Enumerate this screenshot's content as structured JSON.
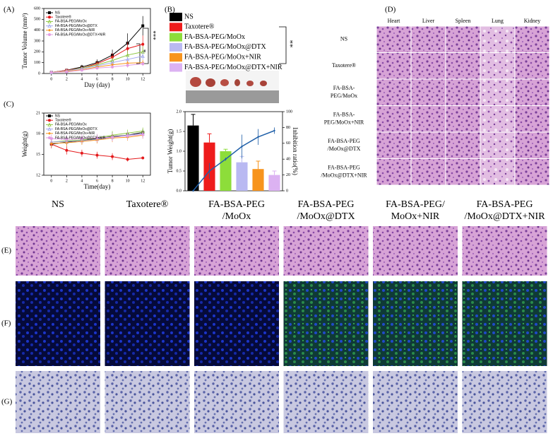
{
  "chart_data": [
    {
      "type": "line",
      "panel_label": "(A)",
      "xlabel": "Day (day)",
      "ylabel": "Tumor Volume (mm³)",
      "x": [
        0,
        2,
        4,
        6,
        8,
        10,
        12
      ],
      "xlim": [
        -1,
        13
      ],
      "xticks": [
        0,
        2,
        4,
        6,
        8,
        10,
        12
      ],
      "ylim": [
        0,
        600
      ],
      "yticks": [
        0,
        100,
        200,
        300,
        400,
        500,
        600
      ],
      "series": [
        {
          "name": "NS",
          "color": "#000000",
          "marker": "square",
          "values": [
            10,
            30,
            60,
            100,
            170,
            280,
            440
          ],
          "errors": [
            5,
            15,
            20,
            30,
            50,
            90,
            90
          ]
        },
        {
          "name": "Taxotere®",
          "color": "#e41a1c",
          "marker": "circle",
          "values": [
            10,
            30,
            50,
            90,
            150,
            230,
            270
          ],
          "errors": [
            5,
            10,
            20,
            25,
            40,
            60,
            80
          ]
        },
        {
          "name": "FA-BSA-PEG/MoOx",
          "color": "#8dc63f",
          "marker": "triangle",
          "values": [
            10,
            25,
            50,
            80,
            120,
            170,
            200
          ],
          "errors": [
            5,
            10,
            15,
            20,
            30,
            40,
            50
          ]
        },
        {
          "name": "FA-BSA-PEG/MoOx@DTX",
          "color": "#a3a8ef",
          "marker": "triangle",
          "values": [
            10,
            25,
            45,
            70,
            100,
            130,
            160
          ],
          "errors": [
            5,
            8,
            12,
            18,
            25,
            30,
            40
          ]
        },
        {
          "name": "FA-BSA-PEG/MoOx+NIR",
          "color": "#f7941d",
          "marker": "diamond",
          "values": [
            10,
            20,
            35,
            60,
            80,
            95,
            100
          ],
          "errors": [
            4,
            8,
            10,
            15,
            20,
            25,
            25
          ]
        },
        {
          "name": "FA-BSA-PEG/MoOx@DTX+NIR",
          "color": "#e29de2",
          "marker": "circle",
          "values": [
            10,
            15,
            30,
            50,
            60,
            75,
            90
          ],
          "errors": [
            4,
            6,
            10,
            12,
            15,
            20,
            20
          ]
        }
      ],
      "annotations": [
        "***",
        "*"
      ]
    },
    {
      "type": "bar",
      "panel_label": "(B)",
      "ylabel": "Tumor Weight(g)",
      "y2label": "Inhibition ratio(%)",
      "categories": [
        "NS",
        "Taxotere®",
        "FA-BSA-PEG/MoOx",
        "FA-BSA-PEG/MoOx@DTX",
        "FA-BSA-PEG/MoOx+NIR",
        "FA-BSA-PEG/MoOx@DTX+NIR"
      ],
      "colors": [
        "#000000",
        "#ee1c1c",
        "#8ddd3a",
        "#b9b9f2",
        "#f7941d",
        "#dcb2f2"
      ],
      "ylim": [
        0,
        2.0
      ],
      "yticks": [
        {
          "value": 0,
          "label": "0.0"
        },
        {
          "value": 0.5,
          "label": "0.5"
        },
        {
          "value": 1.0,
          "label": "1.0"
        },
        {
          "value": 1.5,
          "label": "1.5"
        },
        {
          "value": 2.0,
          "label": "2.0"
        }
      ],
      "y2lim": [
        0,
        100
      ],
      "y2ticks": [
        0,
        20,
        40,
        60,
        80,
        100
      ],
      "series": [
        {
          "values": [
            1.65,
            1.22,
            1.0,
            0.72,
            0.55,
            0.4
          ],
          "errors": [
            0.28,
            0.22,
            0.05,
            0.15,
            0.2,
            0.1
          ]
        },
        {
          "axis": "y2",
          "color": "#1f5fa8",
          "values": [
            0,
            25,
            40,
            56,
            68,
            76
          ],
          "errors": [
            0,
            10,
            2,
            15,
            10,
            4
          ]
        }
      ],
      "annotations": [
        "**"
      ]
    },
    {
      "type": "line",
      "panel_label": "(C)",
      "xlabel": "Time(day)",
      "ylabel": "Weight(g)",
      "x": [
        0,
        2,
        4,
        6,
        8,
        10,
        12
      ],
      "xlim": [
        -1,
        13
      ],
      "xticks": [
        0,
        2,
        4,
        6,
        8,
        10,
        12
      ],
      "ylim": [
        12,
        21
      ],
      "yticks": [
        12,
        15,
        18,
        21
      ],
      "series": [
        {
          "name": "NS",
          "color": "#000000",
          "marker": "square",
          "values": [
            16.5,
            16.8,
            17.0,
            17.3,
            17.6,
            17.8,
            18.2
          ],
          "errors": [
            0.4,
            0.5,
            0.5,
            0.5,
            0.6,
            0.5,
            0.5
          ]
        },
        {
          "name": "Taxotere®",
          "color": "#e41a1c",
          "marker": "circle",
          "values": [
            16.5,
            15.6,
            15.2,
            14.9,
            14.7,
            14.3,
            14.5
          ],
          "errors": [
            0.6,
            0.6,
            0.5,
            0.5,
            0.5,
            0.3,
            0.2
          ]
        },
        {
          "name": "FA-BSA-PEG/MoOx",
          "color": "#8dc63f",
          "marker": "triangle",
          "values": [
            16.8,
            17.0,
            17.1,
            17.4,
            17.8,
            18.1,
            18.4
          ],
          "errors": [
            0.5,
            0.5,
            0.5,
            0.5,
            0.6,
            0.5,
            0.5
          ]
        },
        {
          "name": "FA-BSA-PEG/MoOx@DTX",
          "color": "#a3a8ef",
          "marker": "triangle",
          "values": [
            16.8,
            16.9,
            17.0,
            17.2,
            17.5,
            17.8,
            18.0
          ],
          "errors": [
            0.5,
            0.5,
            0.5,
            0.5,
            0.5,
            0.5,
            0.5
          ]
        },
        {
          "name": "FA-BSA-PEG/MoOx+NIR",
          "color": "#f7941d",
          "marker": "diamond",
          "values": [
            16.6,
            16.7,
            16.9,
            17.1,
            17.4,
            17.5,
            17.8
          ],
          "errors": [
            0.5,
            0.5,
            0.5,
            0.5,
            0.6,
            0.5,
            0.5
          ]
        },
        {
          "name": "FA-BSA-PEG/MoOx@DTX+NIR",
          "color": "#e29de2",
          "marker": "circle",
          "values": [
            17.3,
            17.2,
            17.3,
            17.4,
            17.5,
            17.7,
            17.9
          ],
          "errors": [
            0.6,
            0.6,
            0.6,
            0.6,
            0.6,
            0.6,
            0.6
          ]
        }
      ]
    }
  ],
  "organ_panel": {
    "panel_label": "(D)",
    "columns": [
      "Heart",
      "Liver",
      "Spleen",
      "Lung",
      "Kidney"
    ],
    "rows": [
      [
        "NS"
      ],
      [
        "Taxotere®"
      ],
      [
        "FA-BSA-",
        "PEG/MoOx"
      ],
      [
        "FA-BSA-",
        "PEG/MoOx+NIR"
      ],
      [
        "FA-BSA-PEG",
        "/MoOx@DTX"
      ],
      [
        "FA-BSA-PEG",
        "/MoOx@DTX+NIR"
      ]
    ]
  },
  "section_panels": {
    "headers": [
      [
        "NS"
      ],
      [
        "Taxotere®"
      ],
      [
        "FA-BSA-PEG",
        "/MoOx"
      ],
      [
        "FA-BSA-PEG",
        "/MoOx@DTX"
      ],
      [
        "FA-BSA-PEG/",
        "MoOx+NIR"
      ],
      [
        "FA-BSA-PEG",
        "/MoOx@DTX+NIR"
      ]
    ],
    "rows": [
      "(E)",
      "(F)",
      "(G)"
    ]
  }
}
